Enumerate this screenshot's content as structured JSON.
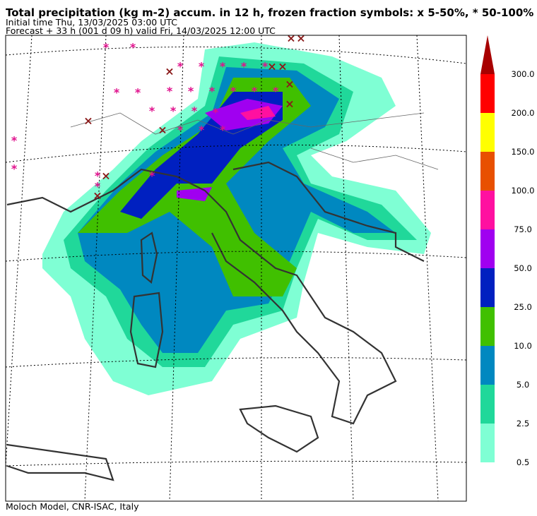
{
  "header": {
    "title": "Total precipitation (kg m-2) accum. in 12 h, frozen fraction symbols: x 5-50%, * 50-100%",
    "initial_time": "Initial time  Thu, 13/03/2025  03:00 UTC",
    "forecast": "Forecast  +  33 h  (001 d 09 h)  valid Fri, 14/03/2025 12:00 UTC"
  },
  "footer": "Moloch Model, CNR-ISAC, Italy",
  "legend": {
    "ticks": [
      {
        "value": 0.5,
        "label": "0.5"
      },
      {
        "value": 2.5,
        "label": "2.5"
      },
      {
        "value": 5.0,
        "label": "5.0"
      },
      {
        "value": 10.0,
        "label": "10.0"
      },
      {
        "value": 25.0,
        "label": "25.0"
      },
      {
        "value": 50.0,
        "label": "50.0"
      },
      {
        "value": 75.0,
        "label": "75.0"
      },
      {
        "value": 100.0,
        "label": "100.0"
      },
      {
        "value": 150.0,
        "label": "150.0"
      },
      {
        "value": 200.0,
        "label": "200.0"
      },
      {
        "value": 300.0,
        "label": "300.0"
      }
    ],
    "colors": [
      "#7fffd4",
      "#20d89a",
      "#0088c0",
      "#40c000",
      "#0020c0",
      "#a000f0",
      "#ff10a0",
      "#e85000",
      "#ffff00",
      "#ff0000"
    ],
    "top_color": "#a80000"
  }
}
